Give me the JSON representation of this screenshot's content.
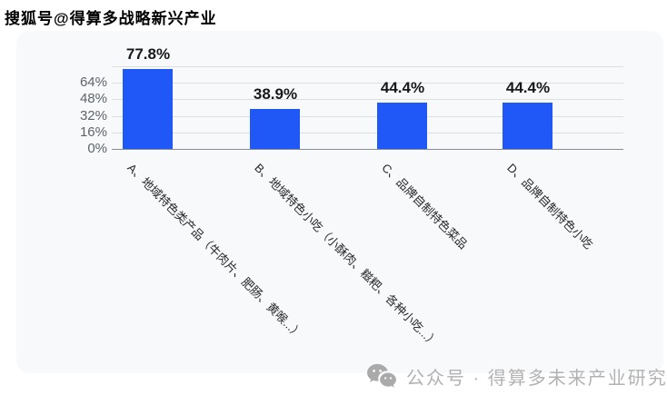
{
  "watermarks": {
    "top_left": "搜狐号@得算多战略新兴产业",
    "bottom_right": "公众号 · 得算多未来产业研究"
  },
  "colors": {
    "bar": "#1f58f7",
    "panel_bg": "#f7f9fb",
    "gridline": "#dcdfe4",
    "axis_line": "#858c93",
    "value_label": "#17181a",
    "tick_label": "#606468",
    "watermark_gray": "#b2b2b2"
  },
  "chart_data": {
    "type": "bar",
    "title": "",
    "xlabel": "",
    "ylabel": "",
    "categories": [
      "A、地域特色类产品（牛肉片、肥肠、黄喉...）",
      "B、地域特色小吃（小酥肉、糍粑、各种小吃...）",
      "C、品牌自制特色菜品",
      "D、品牌自制特色小吃"
    ],
    "values": [
      77.8,
      38.9,
      44.4,
      44.4
    ],
    "value_labels": [
      "77.8%",
      "38.9%",
      "44.4%",
      "44.4%"
    ],
    "ytick_labels": [
      "0%",
      "16%",
      "32%",
      "48%",
      "64%"
    ],
    "ylim": [
      0,
      80
    ],
    "grid": true,
    "legend": "none",
    "bar_color": "#1f58f7"
  }
}
